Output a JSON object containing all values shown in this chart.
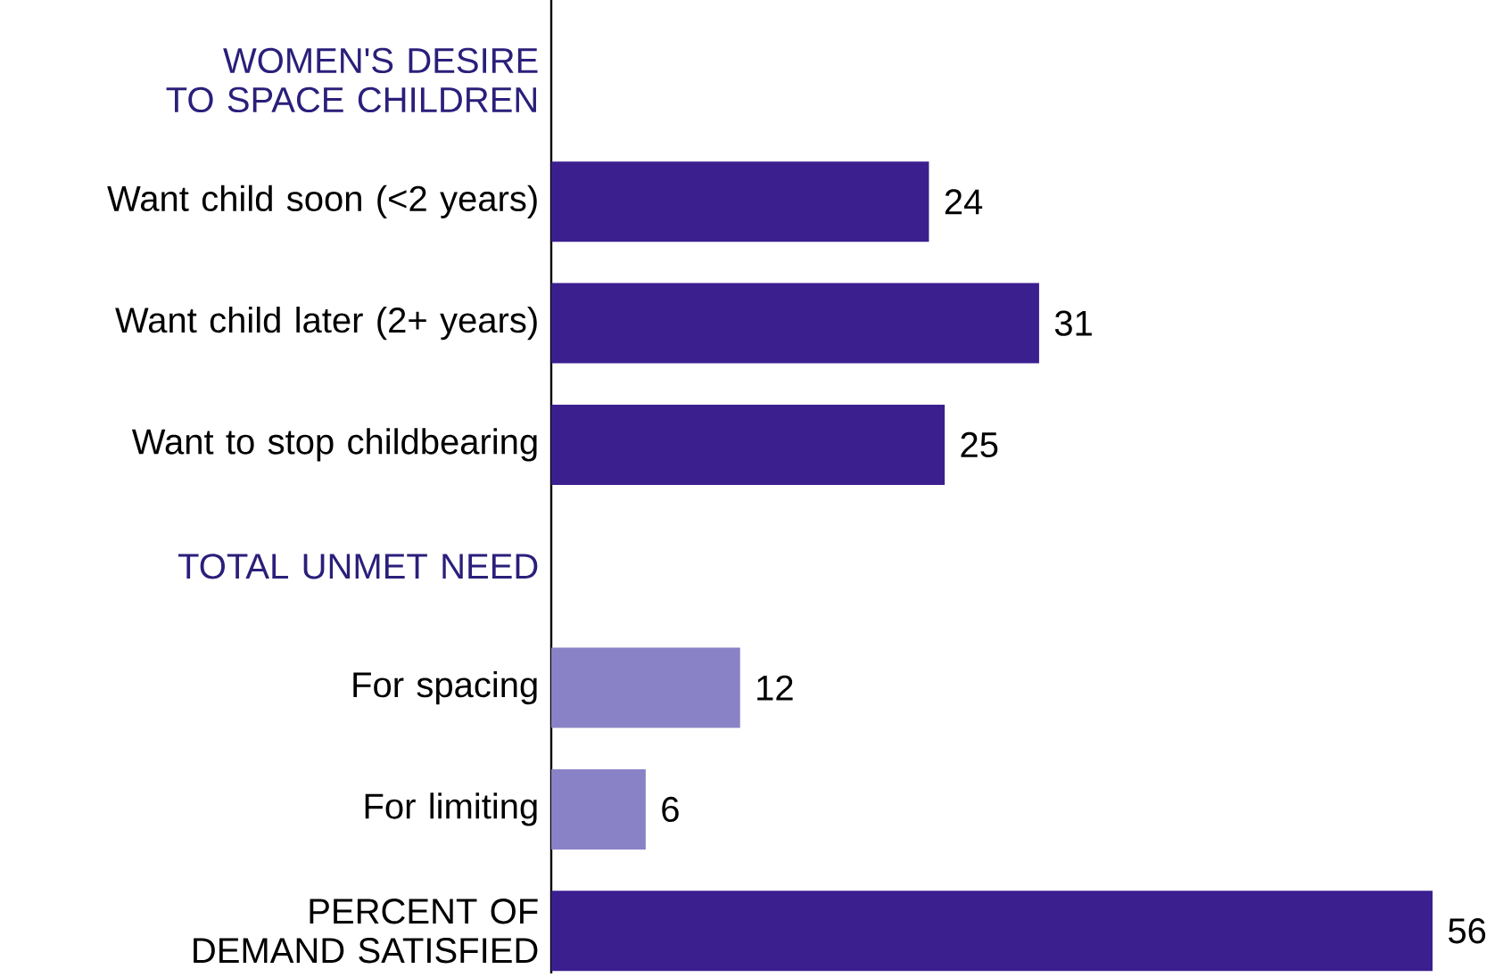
{
  "chart_data": {
    "type": "bar",
    "orientation": "horizontal",
    "categories": [
      "WOMEN'S DESIRE TO SPACE CHILDREN",
      "Want child soon (<2 years)",
      "Want child later (2+ years)",
      "Want to stop childbearing",
      "TOTAL UNMET NEED",
      "For spacing",
      "For limiting",
      "PERCENT OF DEMAND SATISFIED"
    ],
    "values": [
      null,
      24,
      31,
      25,
      null,
      12,
      6,
      56
    ],
    "colors": [
      "#3b1f8f",
      "#3b1f8f",
      "#3b1f8f",
      "#3b1f8f",
      "#3b1f8f",
      "#8a82c6",
      "#8a82c6",
      "#3b1f8f"
    ],
    "data_labels": true,
    "tick_labels": "y"
  }
}
